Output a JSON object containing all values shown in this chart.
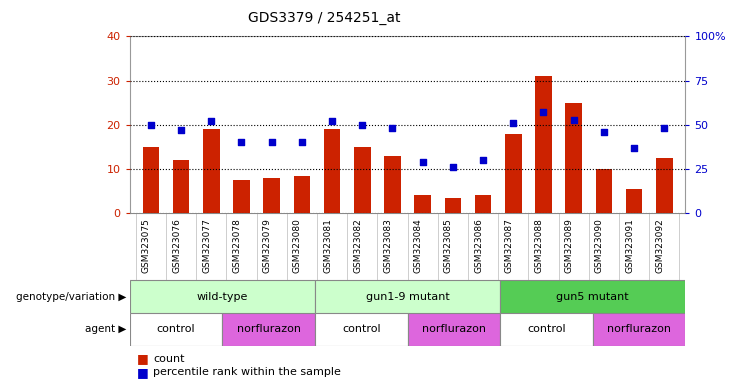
{
  "title": "GDS3379 / 254251_at",
  "samples": [
    "GSM323075",
    "GSM323076",
    "GSM323077",
    "GSM323078",
    "GSM323079",
    "GSM323080",
    "GSM323081",
    "GSM323082",
    "GSM323083",
    "GSM323084",
    "GSM323085",
    "GSM323086",
    "GSM323087",
    "GSM323088",
    "GSM323089",
    "GSM323090",
    "GSM323091",
    "GSM323092"
  ],
  "counts": [
    15,
    12,
    19,
    7.5,
    8,
    8.5,
    19,
    15,
    13,
    4,
    3.5,
    4,
    18,
    31,
    25,
    10,
    5.5,
    12.5
  ],
  "percentiles": [
    50,
    47,
    52,
    40,
    40,
    40,
    52,
    50,
    48,
    29,
    26,
    30,
    51,
    57,
    53,
    46,
    37,
    48
  ],
  "bar_color": "#cc2200",
  "dot_color": "#0000cc",
  "left_ylim": [
    0,
    40
  ],
  "right_ylim": [
    0,
    100
  ],
  "left_yticks": [
    0,
    10,
    20,
    30,
    40
  ],
  "right_yticks": [
    0,
    25,
    50,
    75,
    100
  ],
  "right_yticklabels": [
    "0",
    "25",
    "50",
    "75",
    "100%"
  ],
  "genotype_groups": [
    {
      "label": "wild-type",
      "start": 0,
      "end": 6,
      "color": "#ccffcc"
    },
    {
      "label": "gun1-9 mutant",
      "start": 6,
      "end": 12,
      "color": "#ccffcc"
    },
    {
      "label": "gun5 mutant",
      "start": 12,
      "end": 18,
      "color": "#55cc55"
    }
  ],
  "agent_groups": [
    {
      "label": "control",
      "start": 0,
      "end": 3,
      "color": "#ffffff"
    },
    {
      "label": "norflurazon",
      "start": 3,
      "end": 6,
      "color": "#dd66dd"
    },
    {
      "label": "control",
      "start": 6,
      "end": 9,
      "color": "#ffffff"
    },
    {
      "label": "norflurazon",
      "start": 9,
      "end": 12,
      "color": "#dd66dd"
    },
    {
      "label": "control",
      "start": 12,
      "end": 15,
      "color": "#ffffff"
    },
    {
      "label": "norflurazon",
      "start": 15,
      "end": 18,
      "color": "#dd66dd"
    }
  ],
  "legend_count_color": "#cc2200",
  "legend_dot_color": "#0000cc",
  "plot_bg_color": "#ffffff",
  "tick_label_bg": "#cccccc",
  "left_label": "genotype/variation",
  "agent_label": "agent",
  "legend_count_text": "count",
  "legend_pct_text": "percentile rank within the sample"
}
